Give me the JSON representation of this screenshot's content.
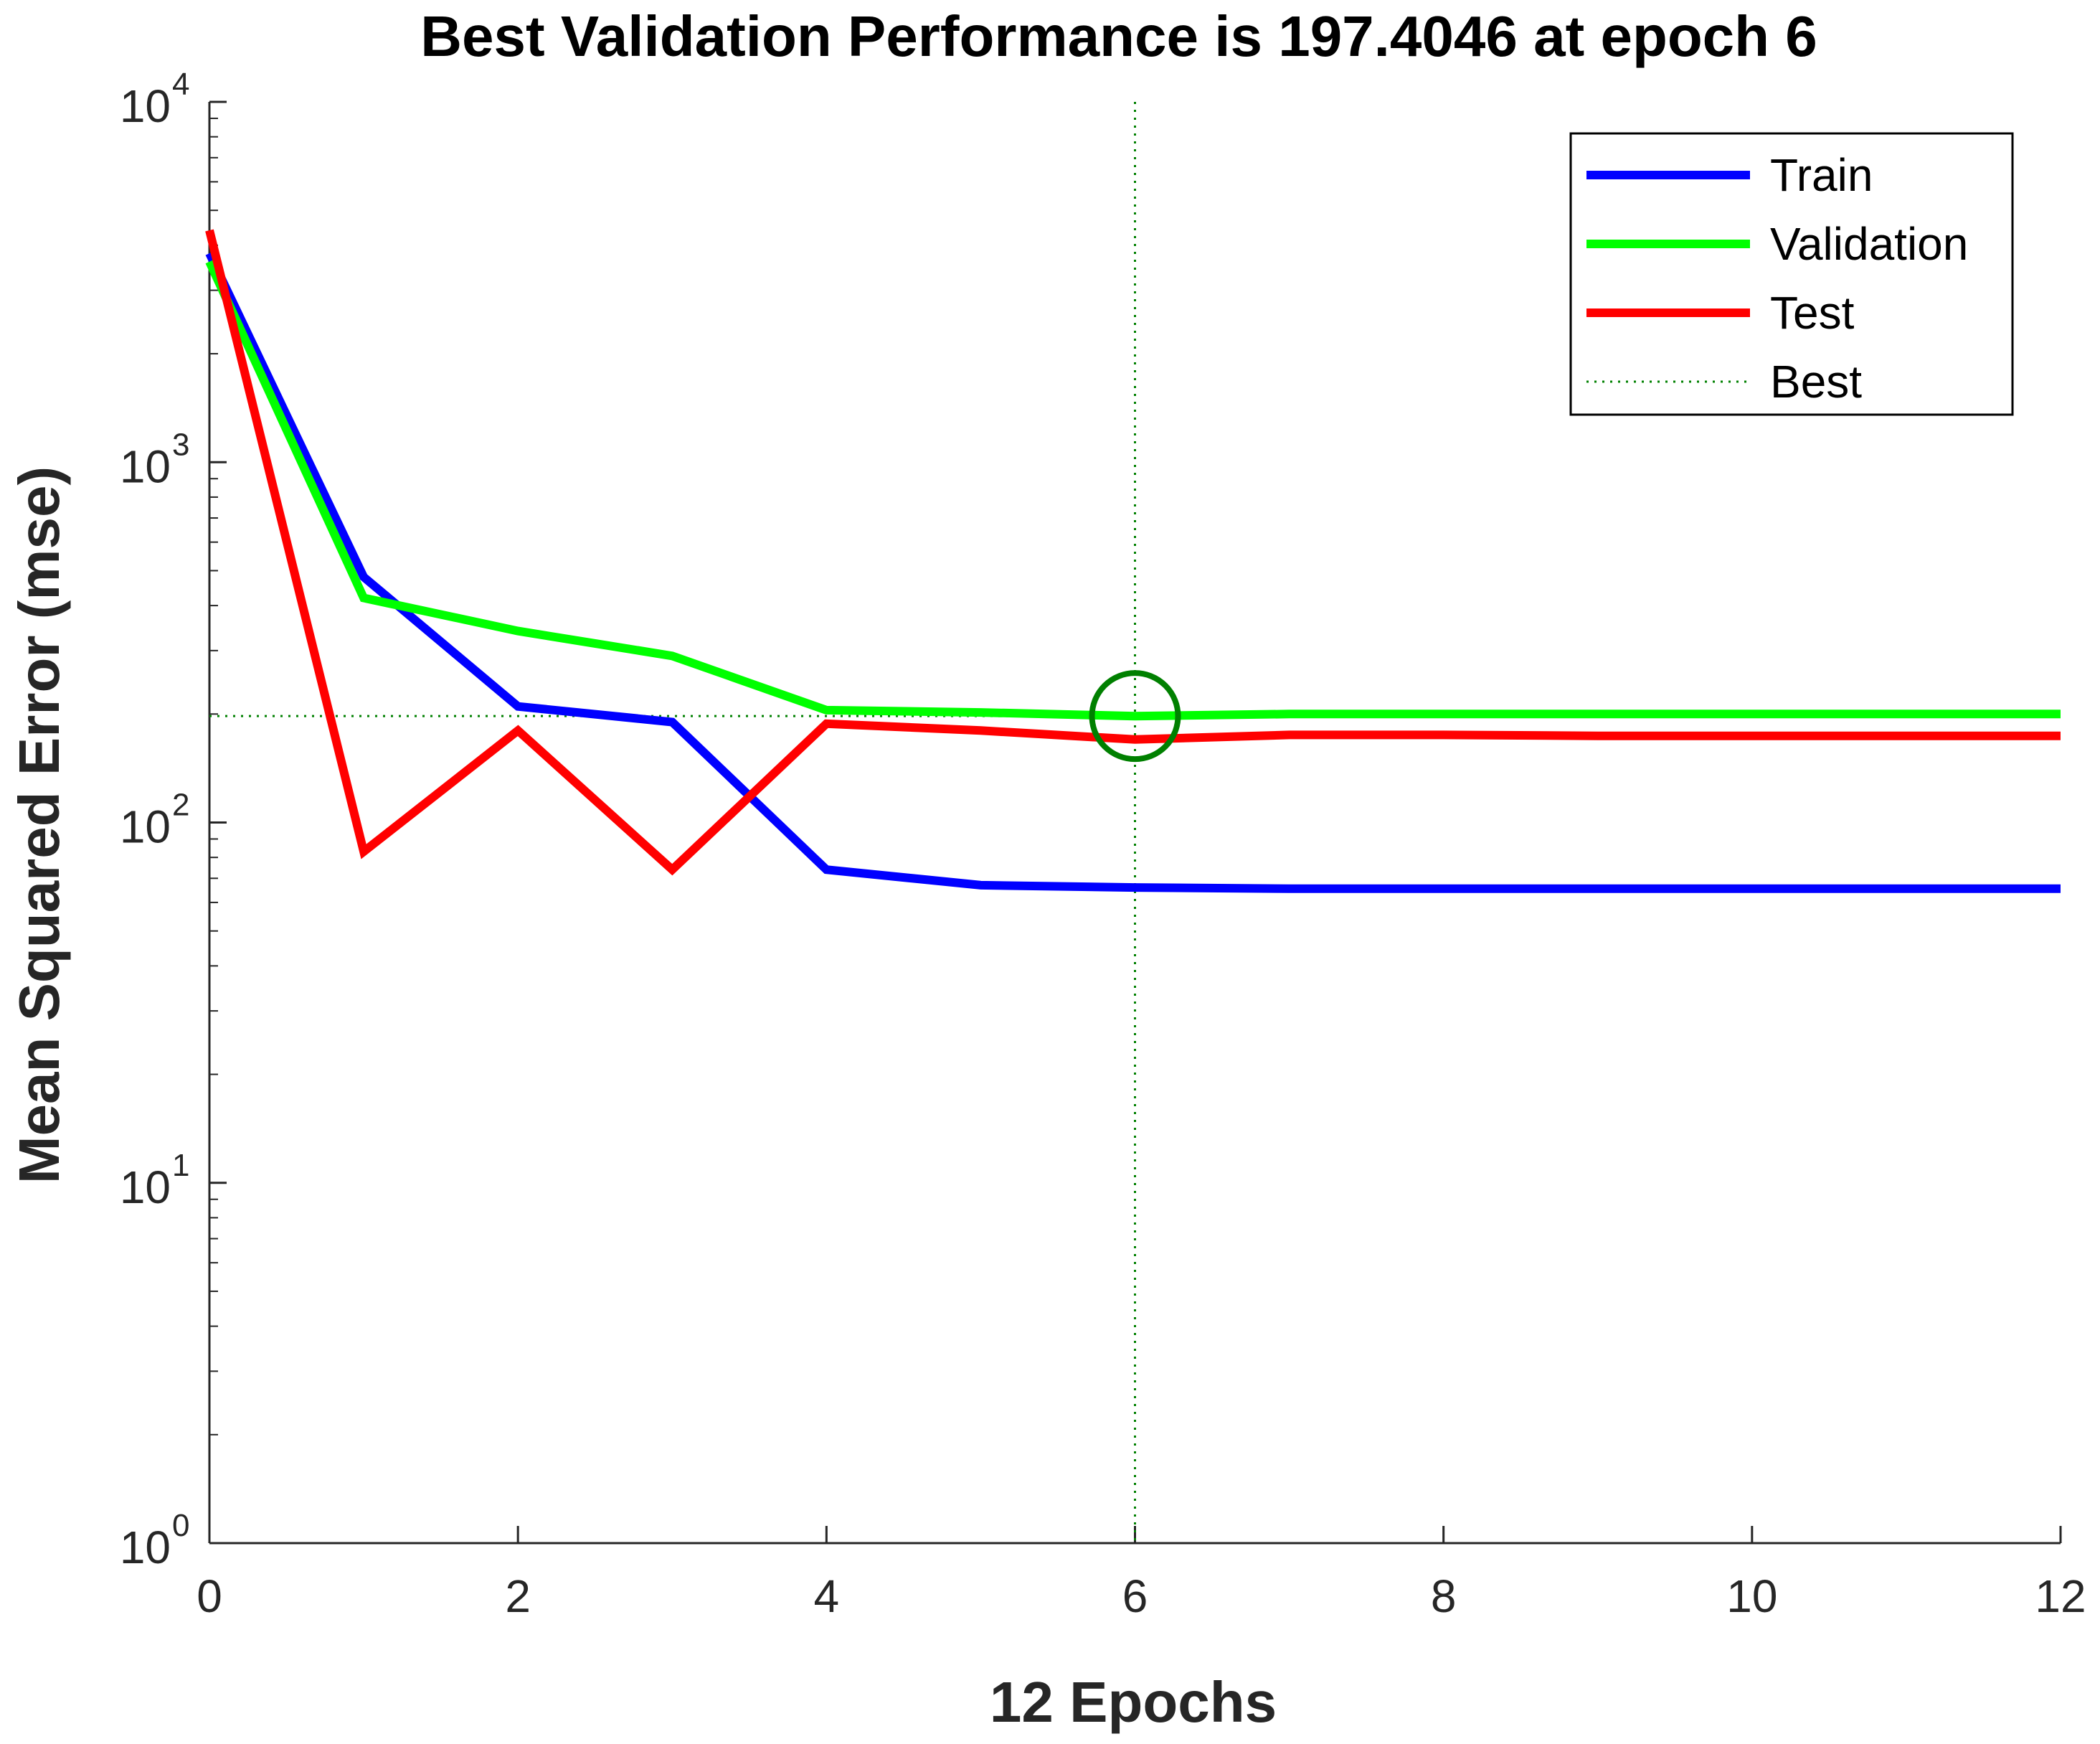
{
  "chart_data": {
    "type": "line",
    "title": "Best Validation Performance is 197.4046 at epoch 6",
    "xlabel": "12 Epochs",
    "ylabel": "Mean Squared Error  (mse)",
    "yscale": "log",
    "xlim": [
      0,
      12
    ],
    "ylim": [
      1,
      10000
    ],
    "xticks": [
      0,
      2,
      4,
      6,
      8,
      10,
      12
    ],
    "xtick_labels": [
      "0",
      "2",
      "4",
      "6",
      "8",
      "10",
      "12"
    ],
    "yticks": [
      1,
      10,
      100,
      1000,
      10000
    ],
    "ytick_labels": [
      {
        "base": "10",
        "exp": "0"
      },
      {
        "base": "10",
        "exp": "1"
      },
      {
        "base": "10",
        "exp": "2"
      },
      {
        "base": "10",
        "exp": "3"
      },
      {
        "base": "10",
        "exp": "4"
      }
    ],
    "x": [
      0,
      1,
      2,
      3,
      4,
      5,
      6,
      7,
      8,
      9,
      10,
      11,
      12
    ],
    "series": [
      {
        "name": "Train",
        "color": "#0000ff",
        "values": [
          3800,
          480,
          210,
          190,
          74,
          67,
          66,
          65.5,
          65.5,
          65.5,
          65.5,
          65.5,
          65.5
        ]
      },
      {
        "name": "Validation",
        "color": "#00ff00",
        "values": [
          3600,
          420,
          340,
          290,
          205,
          202,
          197.4046,
          200,
          200,
          200,
          200,
          200,
          200
        ]
      },
      {
        "name": "Test",
        "color": "#ff0000",
        "values": [
          4400,
          83,
          180,
          74,
          188,
          180,
          170,
          175,
          175,
          174,
          174,
          174,
          174
        ]
      }
    ],
    "best": {
      "name": "Best",
      "epoch": 6,
      "value": 197.4046,
      "color": "#008000"
    },
    "legend_position": "top-right"
  }
}
